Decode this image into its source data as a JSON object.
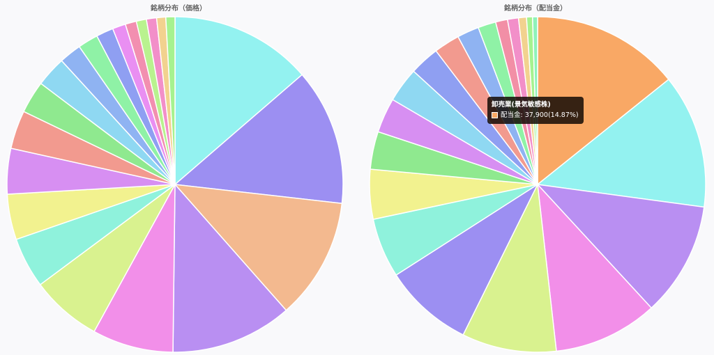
{
  "chart_data": [
    {
      "type": "pie",
      "title": "銘柄分布（価格）",
      "values": [
        14.0,
        13.5,
        12.0,
        12.0,
        8.0,
        7.0,
        5.0,
        4.5,
        4.5,
        3.8,
        3.2,
        3.0,
        2.2,
        2.0,
        1.7,
        1.3,
        1.1,
        1.0,
        1.0,
        0.9,
        0.9
      ],
      "colors": [
        "#93f2f0",
        "#9c8ff2",
        "#f3b98f",
        "#b98ff2",
        "#f28fe9",
        "#d9f28f",
        "#8ff2dc",
        "#f2f28f",
        "#d78ff2",
        "#f29a8f",
        "#8fe98f",
        "#8fd8f2",
        "#8fb3f2",
        "#8ff2a6",
        "#8f9ff2",
        "#e98ff2",
        "#f28fb0",
        "#b9f28f",
        "#f28fc9",
        "#f2d28f",
        "#a6f28f"
      ]
    },
    {
      "type": "pie",
      "title": "銘柄分布（配当金）",
      "values": [
        14.87,
        13.5,
        11.5,
        10.5,
        9.5,
        9.0,
        6.0,
        5.0,
        3.8,
        3.5,
        3.5,
        3.0,
        2.6,
        2.2,
        1.8,
        1.2,
        1.1,
        0.8,
        0.6,
        0.5
      ],
      "colors": [
        "#f9a865",
        "#93f2f0",
        "#b98ff2",
        "#f28fe9",
        "#d9f28f",
        "#9c8ff2",
        "#8ff2dc",
        "#f2f28f",
        "#8fe98f",
        "#d78ff2",
        "#8fd8f2",
        "#8f9ff2",
        "#f29a8f",
        "#8fb3f2",
        "#8ff2a6",
        "#f28fa6",
        "#f28fc9",
        "#f2d28f",
        "#a6f28f",
        "#8ff2b9"
      ]
    }
  ],
  "tooltip": {
    "title": "卸売業(景気敏感株)",
    "body": "配当金: 37,900(14.87%)",
    "color": "#f9a865"
  }
}
